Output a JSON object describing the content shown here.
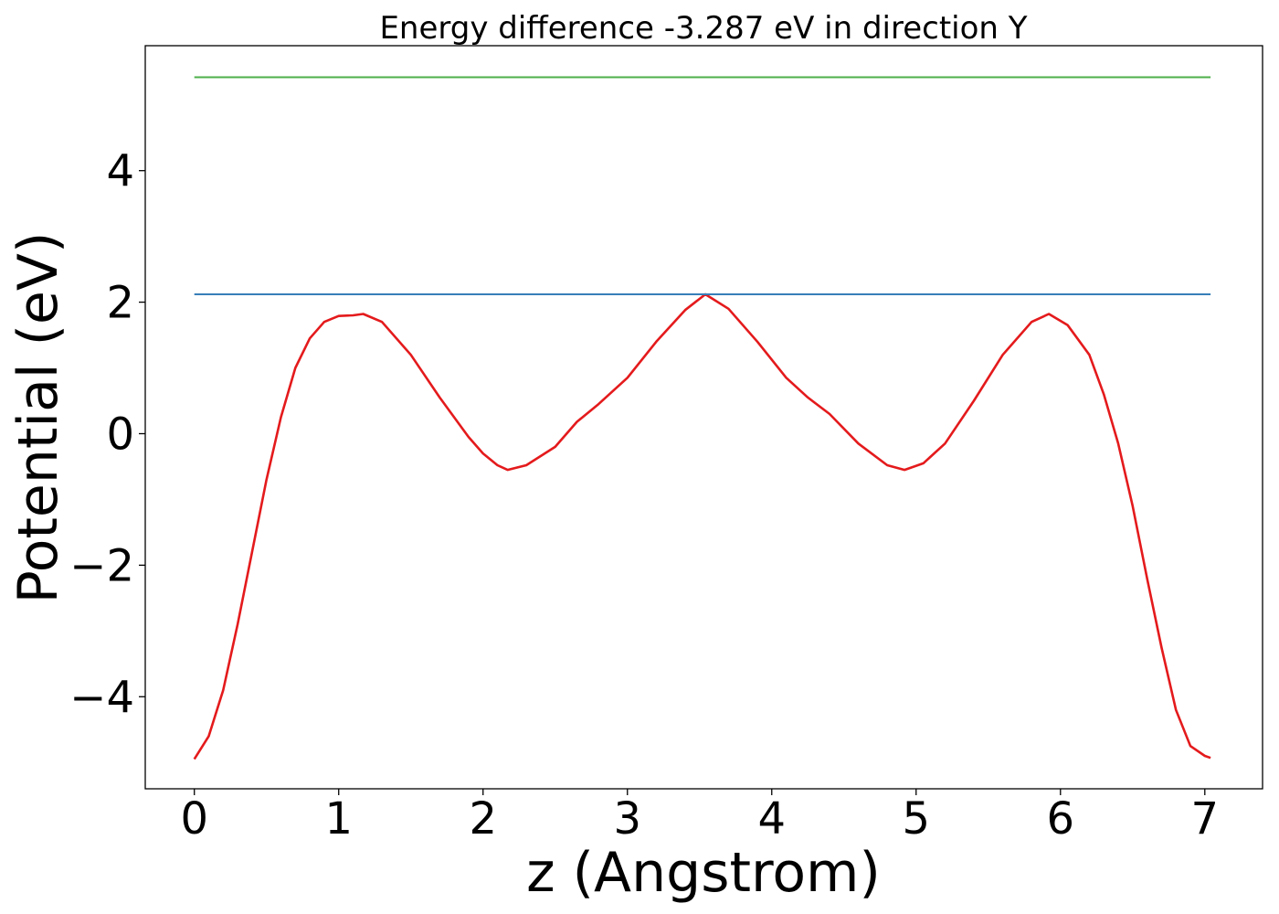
{
  "chart_data": {
    "type": "line",
    "title": "Energy difference -3.287 eV in direction Y",
    "xlabel": "z (Angstrom)",
    "ylabel": "Potential (eV)",
    "xlim": [
      -0.34,
      7.4
    ],
    "ylim": [
      -5.4,
      5.9
    ],
    "xticks": [
      0,
      1,
      2,
      3,
      4,
      5,
      6,
      7
    ],
    "xtick_labels": [
      "0",
      "1",
      "2",
      "3",
      "4",
      "5",
      "6",
      "7"
    ],
    "yticks": [
      -4,
      -2,
      0,
      2,
      4
    ],
    "ytick_labels": [
      "−4",
      "−2",
      "0",
      "2",
      "4"
    ],
    "grid": false,
    "series": [
      {
        "color": "#e41a1c",
        "x": [
          0.0,
          0.1,
          0.2,
          0.3,
          0.4,
          0.5,
          0.6,
          0.7,
          0.8,
          0.9,
          1.0,
          1.1,
          1.17,
          1.3,
          1.5,
          1.7,
          1.9,
          2.0,
          2.1,
          2.17,
          2.3,
          2.5,
          2.65,
          2.8,
          3.0,
          3.2,
          3.4,
          3.54,
          3.7,
          3.9,
          4.1,
          4.25,
          4.4,
          4.6,
          4.8,
          4.92,
          5.05,
          5.2,
          5.4,
          5.6,
          5.8,
          5.92,
          6.05,
          6.2,
          6.3,
          6.4,
          6.5,
          6.6,
          6.7,
          6.8,
          6.9,
          7.0,
          7.04
        ],
        "y": [
          -4.95,
          -4.6,
          -3.9,
          -2.9,
          -1.8,
          -0.7,
          0.25,
          1.0,
          1.45,
          1.7,
          1.79,
          1.8,
          1.82,
          1.7,
          1.2,
          0.55,
          -0.05,
          -0.3,
          -0.48,
          -0.55,
          -0.48,
          -0.2,
          0.18,
          0.45,
          0.85,
          1.4,
          1.88,
          2.12,
          1.9,
          1.4,
          0.85,
          0.55,
          0.3,
          -0.15,
          -0.48,
          -0.55,
          -0.45,
          -0.15,
          0.5,
          1.2,
          1.7,
          1.82,
          1.65,
          1.2,
          0.6,
          -0.15,
          -1.1,
          -2.2,
          -3.25,
          -4.2,
          -4.75,
          -4.9,
          -4.93
        ]
      },
      {
        "color": "#377eb8",
        "x": [
          0.0,
          7.04
        ],
        "y": [
          2.12,
          2.12
        ]
      },
      {
        "color": "#4daf4a",
        "x": [
          0.0,
          7.04
        ],
        "y": [
          5.42,
          5.42
        ]
      }
    ]
  }
}
